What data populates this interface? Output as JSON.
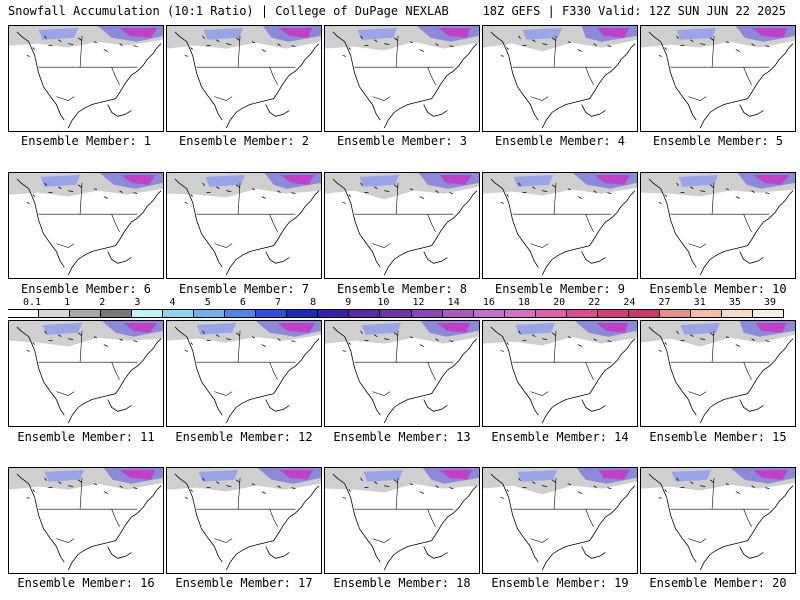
{
  "header": {
    "left": "Snowfall Accumulation (10:1 Ratio) | College of DuPage NEXLAB",
    "right": "18Z GEFS | F330 Valid: 12Z SUN JUN 22 2025"
  },
  "members": [
    "Ensemble Member: 1",
    "Ensemble Member: 2",
    "Ensemble Member: 3",
    "Ensemble Member: 4",
    "Ensemble Member: 5",
    "Ensemble Member: 6",
    "Ensemble Member: 7",
    "Ensemble Member: 8",
    "Ensemble Member: 9",
    "Ensemble Member: 10",
    "Ensemble Member: 11",
    "Ensemble Member: 12",
    "Ensemble Member: 13",
    "Ensemble Member: 14",
    "Ensemble Member: 15",
    "Ensemble Member: 16",
    "Ensemble Member: 17",
    "Ensemble Member: 18",
    "Ensemble Member: 19",
    "Ensemble Member: 20"
  ],
  "colorbar": {
    "labels": [
      "0.1",
      "1",
      "2",
      "3",
      "4",
      "5",
      "6",
      "7",
      "8",
      "9",
      "10",
      "12",
      "14",
      "16",
      "18",
      "20",
      "22",
      "24",
      "27",
      "31",
      "35",
      "39"
    ],
    "colors": [
      "#ffffff",
      "#d8d8d8",
      "#a8a8a8",
      "#787878",
      "#bff4f9",
      "#8fd6f2",
      "#6fb2ef",
      "#4f86e8",
      "#2d4fde",
      "#1a2bb5",
      "#3a1fa8",
      "#5a2aa0",
      "#6f35a8",
      "#8b47b5",
      "#a85ac2",
      "#c46fcf",
      "#d870c8",
      "#e060b0",
      "#dc4b92",
      "#d03f78",
      "#c83a63",
      "#e39087",
      "#f2bca6",
      "#f8dcc8",
      "#fcf0e4"
    ]
  }
}
